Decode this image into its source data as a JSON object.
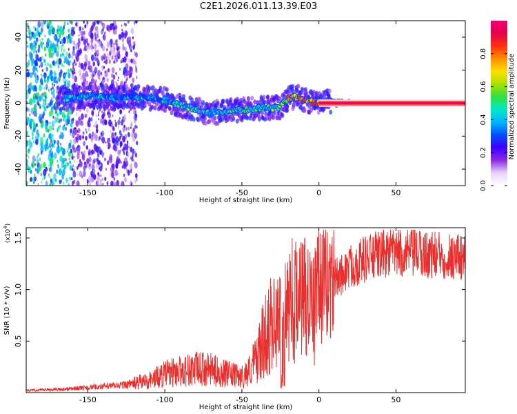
{
  "title": "C2E1.2026.011.13.39.E03",
  "chart_data": [
    {
      "type": "heatmap",
      "name": "spectrogram",
      "xlabel": "Height of straight line (km)",
      "ylabel": "Frequency (Hz)",
      "xlim": [
        -190,
        95
      ],
      "ylim": [
        -50,
        50
      ],
      "xticks": [
        -150,
        -100,
        -50,
        0,
        50
      ],
      "yticks": [
        -40,
        -20,
        0,
        20,
        40
      ],
      "colorbar": {
        "label": "Normalized spectral amplitude",
        "range": [
          0,
          1
        ],
        "ticks": [
          "0.0",
          "0.2",
          "0.4",
          "0.6",
          "0.8"
        ],
        "tick_values": [
          0.0,
          0.2,
          0.4,
          0.6,
          0.8
        ],
        "colors": [
          "#ffffff",
          "#e6d3f5",
          "#8a2be2",
          "#3c00ff",
          "#0050ff",
          "#00b4ff",
          "#00e8c8",
          "#30e040",
          "#a8e000",
          "#ffe000",
          "#ff9000",
          "#ff3010",
          "#e8004a",
          "#f00078"
        ]
      },
      "ridge": {
        "x": [
          -160,
          -150,
          -140,
          -130,
          -120,
          -110,
          -100,
          -90,
          -80,
          -70,
          -60,
          -50,
          -45,
          -40,
          -35,
          -30,
          -25,
          -20,
          -15,
          -10,
          -5,
          0,
          5,
          10,
          20,
          40,
          60,
          80,
          95
        ],
        "y": [
          3,
          5,
          4,
          3,
          4,
          3,
          2,
          -1,
          -4,
          -6,
          -5,
          -4,
          -4,
          -3,
          -3,
          -3,
          -2,
          3,
          4,
          2,
          1,
          0,
          1,
          0,
          0,
          0,
          0,
          0,
          0
        ],
        "amp": [
          0.35,
          0.4,
          0.35,
          0.3,
          0.35,
          0.35,
          0.4,
          0.45,
          0.5,
          0.45,
          0.45,
          0.5,
          0.55,
          0.55,
          0.5,
          0.5,
          0.55,
          0.7,
          0.75,
          0.8,
          0.85,
          0.85,
          0.9,
          0.95,
          0.97,
          0.98,
          0.98,
          0.98,
          0.98
        ]
      }
    },
    {
      "type": "line",
      "name": "snr",
      "xlabel": "Height of straight line (km)",
      "ylabel": "SNR (10 * v/v)",
      "scale_label": "(x10",
      "scale_exponent": "4",
      "scale_close": ")",
      "xlim": [
        -190,
        95
      ],
      "ylim": [
        0,
        16000
      ],
      "xticks": [
        -150,
        -100,
        -50,
        0,
        50
      ],
      "yticks": [
        5000,
        10000,
        15000
      ],
      "ytick_labels": [
        "0.5",
        "1.0",
        "1.5"
      ],
      "color": "#e8302e",
      "envelope": {
        "x": [
          -190,
          -170,
          -150,
          -130,
          -120,
          -110,
          -100,
          -90,
          -80,
          -70,
          -60,
          -50,
          -45,
          -40,
          -35,
          -30,
          -25,
          -20,
          -15,
          -10,
          -5,
          0,
          5,
          10,
          15,
          20,
          30,
          40,
          50,
          60,
          70,
          80,
          95
        ],
        "y": [
          200,
          300,
          500,
          700,
          900,
          1200,
          1800,
          2100,
          2300,
          2200,
          1800,
          1500,
          2200,
          3500,
          5500,
          7000,
          8500,
          9500,
          10000,
          10200,
          10300,
          10400,
          10600,
          11000,
          11500,
          12200,
          13000,
          13400,
          13600,
          13500,
          13400,
          13300,
          13200
        ]
      }
    }
  ]
}
